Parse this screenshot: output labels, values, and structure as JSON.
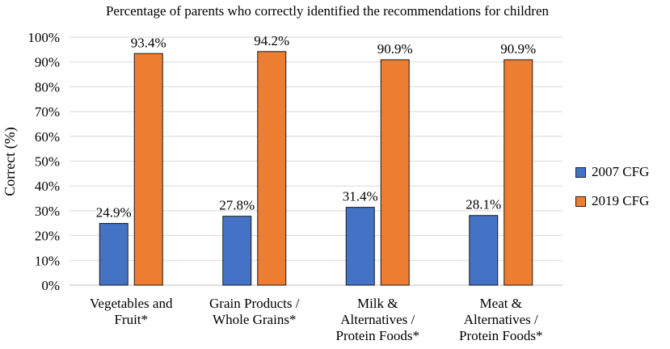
{
  "chart_data": {
    "type": "bar",
    "title": "Percentage of parents who correctly identified the recommendations for children",
    "ylabel": "Correct (%)",
    "xlabel": "",
    "ylim": [
      0,
      100
    ],
    "y_ticks": [
      "0%",
      "10%",
      "20%",
      "30%",
      "40%",
      "50%",
      "60%",
      "70%",
      "80%",
      "90%",
      "100%"
    ],
    "grid": true,
    "legend_position": "right",
    "categories": [
      [
        "Vegetables and",
        "Fruit*"
      ],
      [
        "Grain Products /",
        "Whole Grains*"
      ],
      [
        "Milk &",
        "Alternatives /",
        "Protein Foods*"
      ],
      [
        "Meat &",
        "Alternatives /",
        "Protein Foods*"
      ]
    ],
    "series": [
      {
        "name": "2007 CFG",
        "color": "#4472C4",
        "values": [
          24.9,
          27.8,
          31.4,
          28.1
        ],
        "labels": [
          "24.9%",
          "27.8%",
          "31.4%",
          "28.1%"
        ]
      },
      {
        "name": "2019 CFG",
        "color": "#ED7D31",
        "values": [
          93.4,
          94.2,
          90.9,
          90.9
        ],
        "labels": [
          "93.4%",
          "94.2%",
          "90.9%",
          "90.9%"
        ]
      }
    ]
  }
}
